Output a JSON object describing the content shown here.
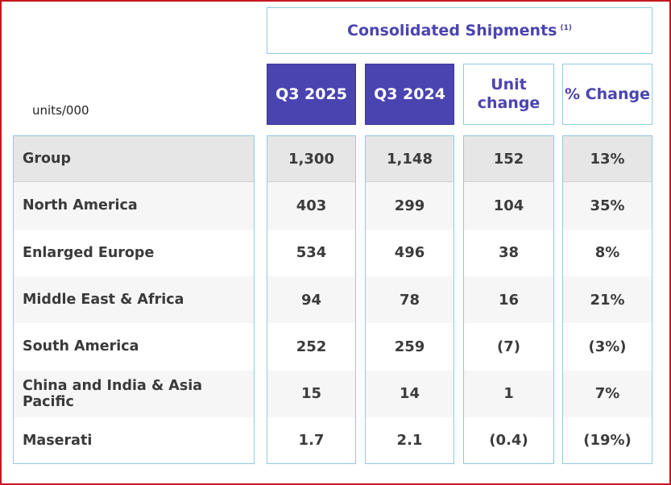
{
  "header": {
    "title": "Consolidated Shipments",
    "footnote": "(1)",
    "units": "units/000",
    "columns": [
      "Q3 2025",
      "Q3 2024",
      "Unit change",
      "% Change"
    ]
  },
  "rows": [
    {
      "label": "Group",
      "q3_2025": "1,300",
      "q3_2024": "1,148",
      "unit_change": "152",
      "pct_change": "13%"
    },
    {
      "label": "North America",
      "q3_2025": "403",
      "q3_2024": "299",
      "unit_change": "104",
      "pct_change": "35%"
    },
    {
      "label": "Enlarged Europe",
      "q3_2025": "534",
      "q3_2024": "496",
      "unit_change": "38",
      "pct_change": "8%"
    },
    {
      "label": "Middle East & Africa",
      "q3_2025": "94",
      "q3_2024": "78",
      "unit_change": "16",
      "pct_change": "21%"
    },
    {
      "label": "South America",
      "q3_2025": "252",
      "q3_2024": "259",
      "unit_change": "(7)",
      "pct_change": "(3%)"
    },
    {
      "label": "China and India & Asia Pacific",
      "q3_2025": "15",
      "q3_2024": "14",
      "unit_change": "1",
      "pct_change": "7%"
    },
    {
      "label": "Maserati",
      "q3_2025": "1.7",
      "q3_2024": "2.1",
      "unit_change": "(0.4)",
      "pct_change": "(19%)"
    }
  ],
  "colors": {
    "border_accent": "#c4181f",
    "header_fill": "#4a44b0",
    "header_text": "#4a44b0",
    "cell_border": "#8fcbe4",
    "group_row_bg": "#e6e6e6",
    "stripe_bg": "#f6f6f6"
  },
  "chart_data": {
    "type": "table",
    "title": "Consolidated Shipments",
    "units": "units/000",
    "columns": [
      "Q3 2025",
      "Q3 2024",
      "Unit change",
      "% Change"
    ],
    "rows": [
      [
        "Group",
        1300,
        1148,
        152,
        "13%"
      ],
      [
        "North America",
        403,
        299,
        104,
        "35%"
      ],
      [
        "Enlarged Europe",
        534,
        496,
        38,
        "8%"
      ],
      [
        "Middle East & Africa",
        94,
        78,
        16,
        "21%"
      ],
      [
        "South America",
        252,
        259,
        -7,
        "(3%)"
      ],
      [
        "China and India & Asia Pacific",
        15,
        14,
        1,
        "7%"
      ],
      [
        "Maserati",
        1.7,
        2.1,
        -0.4,
        "(19%)"
      ]
    ]
  }
}
